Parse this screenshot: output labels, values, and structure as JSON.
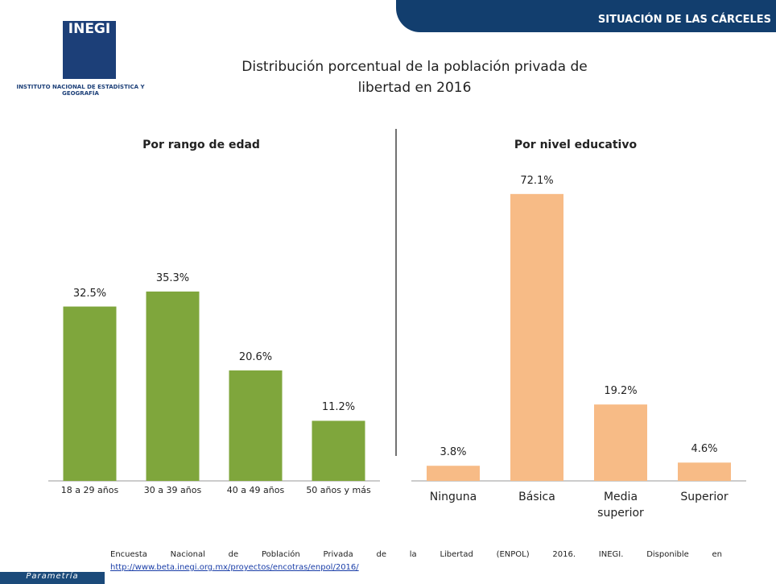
{
  "header": "SITUACIÓN DE LAS CÁRCELES",
  "logo": {
    "name": "INEGI",
    "text": "INSTITUTO NACIONAL DE ESTADÍSTICA Y GEOGRAFÍA"
  },
  "title": "Distribución porcentual de la población privada de libertad en 2016",
  "source": {
    "text": "Encuesta Nacional de Población Privada de la Libertad (ENPOL) 2016. INEGI. Disponible en",
    "url": "http://www.beta.inegi.org.mx/proyectos/encotras/enpol/2016/"
  },
  "brand": "Parametría",
  "chart_data": [
    {
      "type": "bar",
      "title": "Por rango de edad",
      "categories": [
        "18 a 29 años",
        "30 a 39 años",
        "40 a 49 años",
        "50 años y más"
      ],
      "values": [
        32.5,
        35.3,
        20.6,
        11.2
      ],
      "value_labels": [
        "32.5%",
        "35.3%",
        "20.6%",
        "11.2%"
      ],
      "color": "#7fa63c"
    },
    {
      "type": "bar",
      "title": "Por nivel educativo",
      "categories": [
        "Ninguna",
        "Básica",
        "Media superior",
        "Superior"
      ],
      "values": [
        3.8,
        72.1,
        19.2,
        4.6
      ],
      "value_labels": [
        "3.8%",
        "72.1%",
        "19.2%",
        "4.6%"
      ],
      "color": "#f7bb86"
    }
  ]
}
